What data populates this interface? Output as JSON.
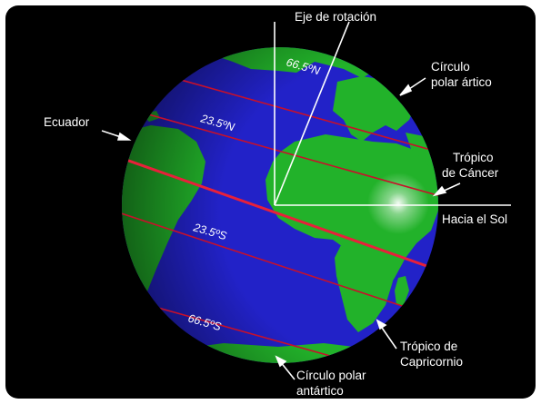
{
  "diagram": {
    "labels": {
      "axis": "Eje de rotación",
      "arctic_circle": [
        "Círculo",
        "polar ártico"
      ],
      "equator": "Ecuador",
      "tropic_cancer": [
        "Trópico",
        "de Cáncer"
      ],
      "to_sun": "Hacia el Sol",
      "tropic_capricorn": [
        "Trópico de",
        "Capricornio"
      ],
      "antarctic_circle": [
        "Círculo polar",
        "antártico"
      ]
    },
    "latitude_marks": {
      "n66": "66.5ºN",
      "n23": "23.5ºN",
      "s23": "23.5ºS",
      "s66": "66.5ºS"
    },
    "colors": {
      "ocean": "#2222c8",
      "land": "#22b22a",
      "equator_line": "#e8203a",
      "tropic_line": "#c8102a",
      "background": "#000000"
    }
  }
}
